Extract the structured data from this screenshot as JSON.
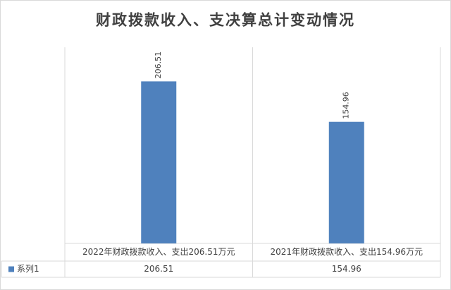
{
  "chart_data": {
    "type": "bar",
    "title": "财政拨款收入、支决算总计变动情况",
    "categories": [
      "2022年财政拨款收入、支出206.51万元",
      "2021年财政拨款收入、支出154.96万元"
    ],
    "series": [
      {
        "name": "系列1",
        "color": "#4f81bd",
        "values": [
          206.51,
          154.96
        ]
      }
    ],
    "ylim": [
      0,
      250
    ],
    "data_table": true
  }
}
